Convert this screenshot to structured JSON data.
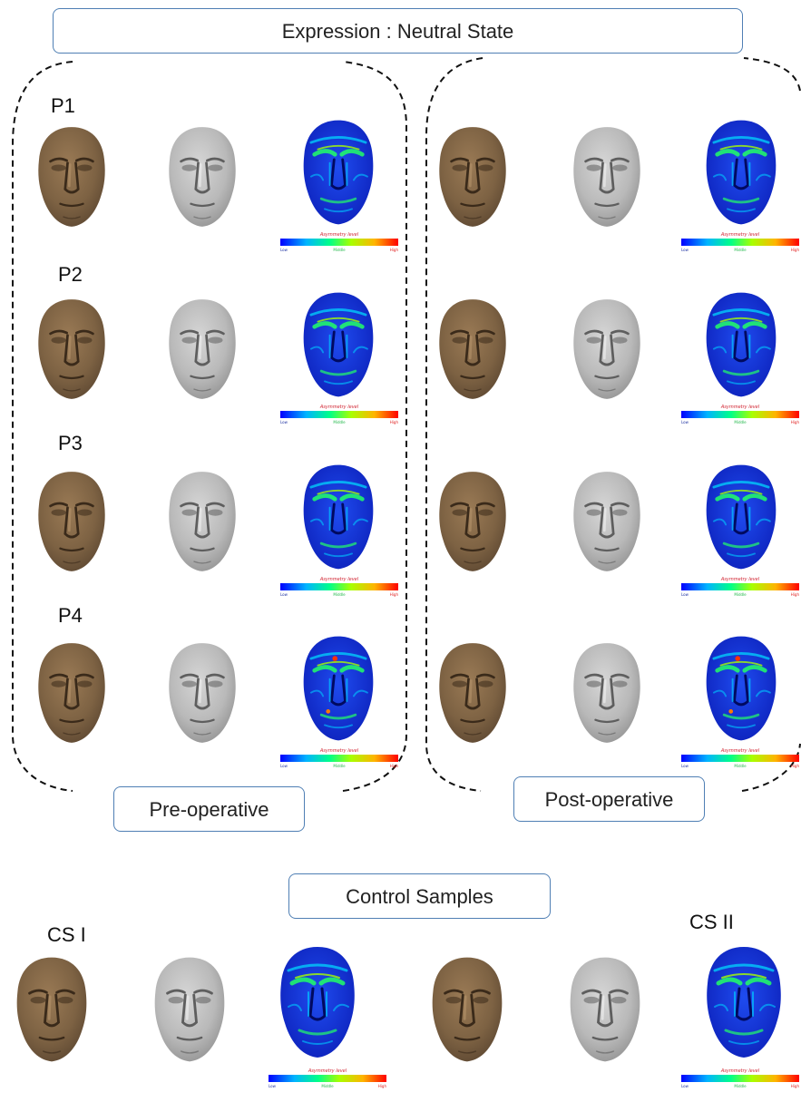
{
  "header": {
    "title": "Expression : Neutral State"
  },
  "groups": {
    "pre_label": "Pre-operative",
    "post_label": "Post-operative"
  },
  "patients": [
    {
      "label": "P1"
    },
    {
      "label": "P2"
    },
    {
      "label": "P3"
    },
    {
      "label": "P4"
    }
  ],
  "controls": {
    "title": "Control Samples",
    "labels": [
      "CS I",
      "CS II"
    ]
  },
  "asymmetry_bar": {
    "title": "Asymmetry level",
    "low": "Low",
    "middle": "Middle",
    "high": "High"
  },
  "colors": {
    "accent_border": "#4f7fb4",
    "textured_face": "#7d6243",
    "mesh_face": "#bcbcbc",
    "map_base": "#1030d8",
    "bar_title": "#d0202e"
  }
}
